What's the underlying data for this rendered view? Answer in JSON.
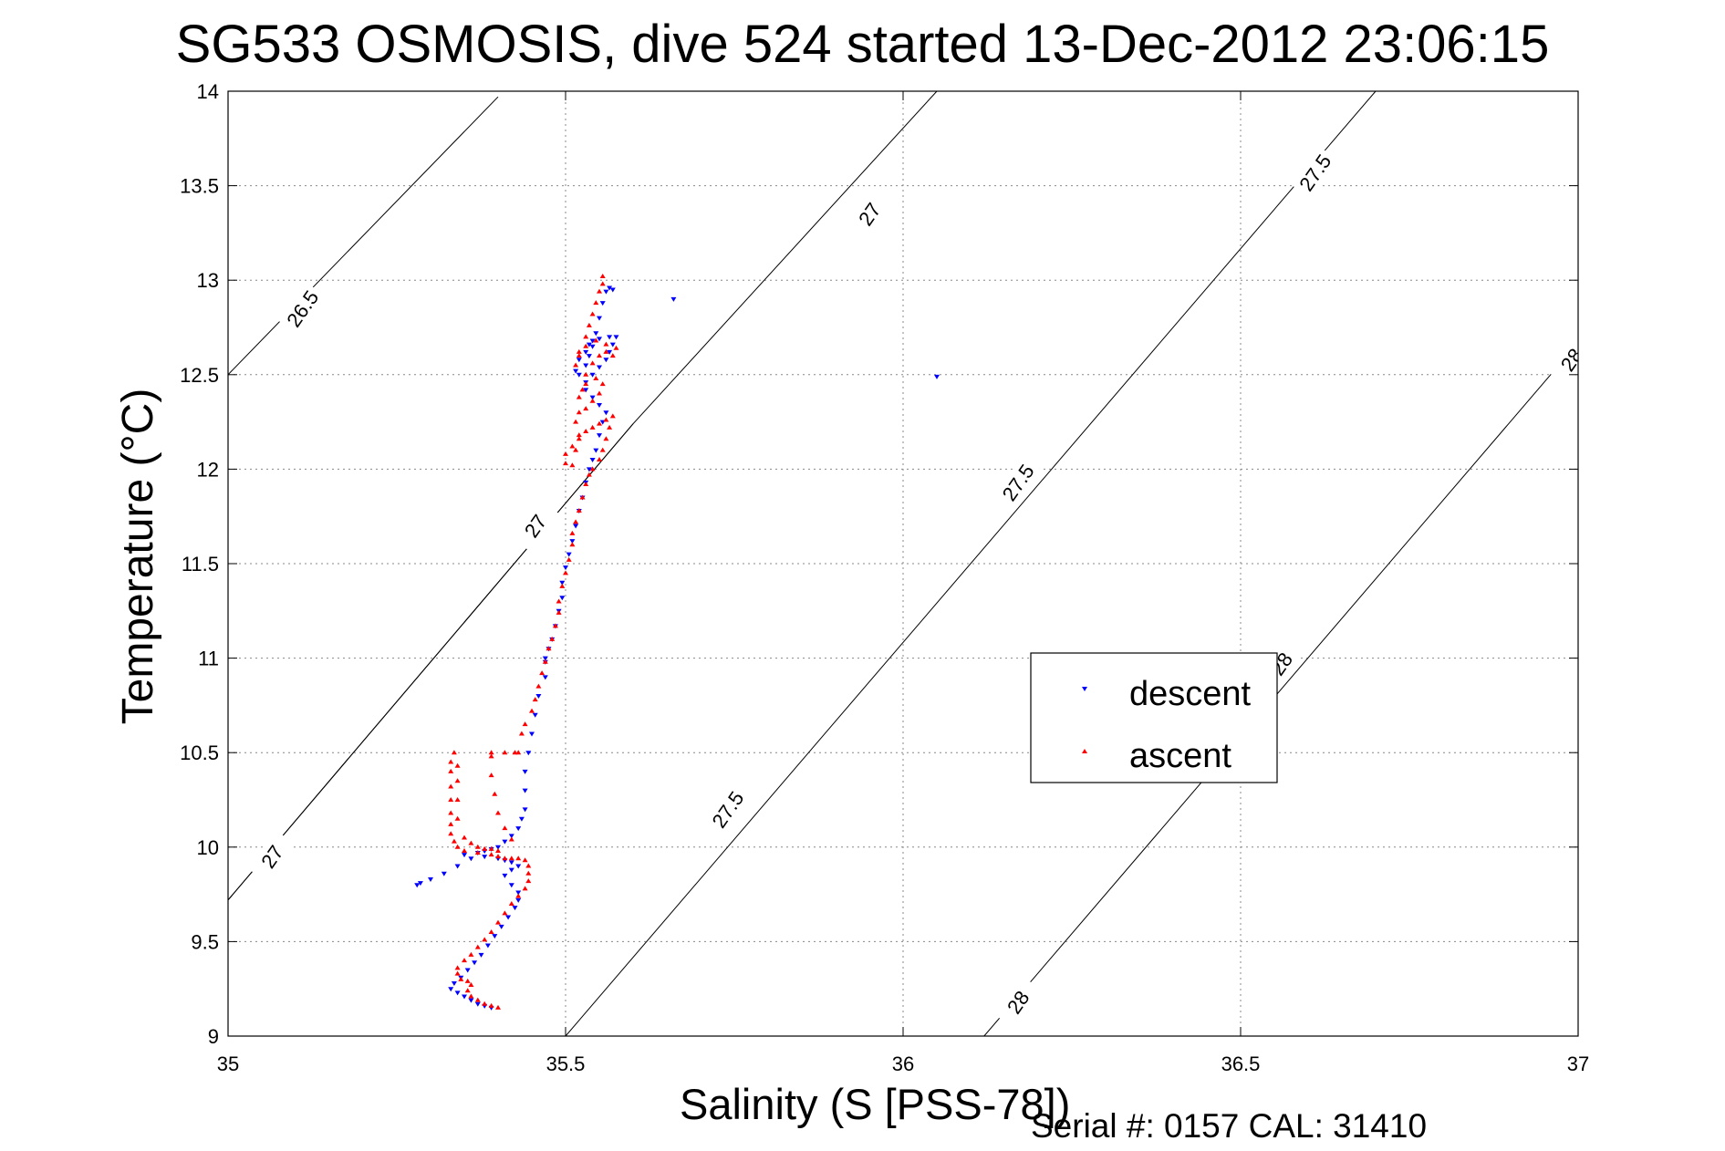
{
  "chart_data": {
    "type": "scatter",
    "title": "SG533 OSMOSIS, dive 524 started 13-Dec-2012 23:06:15",
    "xlabel": "Salinity (S [PSS-78])",
    "ylabel": "Temperature (°C)",
    "xlim": [
      35,
      37
    ],
    "ylim": [
      9,
      14
    ],
    "xticks": [
      "35",
      "35.5",
      "36",
      "36.5",
      "37"
    ],
    "yticks": [
      "9",
      "9.5",
      "10",
      "10.5",
      "11",
      "11.5",
      "12",
      "12.5",
      "13",
      "13.5",
      "14"
    ],
    "grid": true,
    "legend_position": "lower-right",
    "footer": "Serial #: 0157  CAL: 31410",
    "contours": [
      {
        "level": "26.5",
        "points": [
          [
            35,
            12.5
          ],
          [
            35.4,
            13.97
          ]
        ],
        "label": {
          "x": 35.11,
          "y": 12.85,
          "text": "26.5"
        }
      },
      {
        "level": "27",
        "points": [
          [
            35,
            9.72
          ],
          [
            35.6,
            12.24
          ],
          [
            36.05,
            14
          ]
        ],
        "label": {
          "x": 35.95,
          "y": 13.35,
          "text": "27"
        }
      },
      {
        "level": "27",
        "points": [
          [
            35,
            9.72
          ],
          [
            35.6,
            12.24
          ]
        ],
        "label": {
          "x": 35.065,
          "y": 9.95,
          "text": "27"
        }
      },
      {
        "level": "27",
        "points": [
          [
            35,
            9.72
          ],
          [
            35.6,
            12.24
          ]
        ],
        "label": {
          "x": 35.455,
          "y": 11.7,
          "text": "27"
        }
      },
      {
        "level": "27.5",
        "points": [
          [
            35.5,
            9
          ],
          [
            36.7,
            14
          ]
        ],
        "label": {
          "x": 36.61,
          "y": 13.57,
          "text": "27.5"
        }
      },
      {
        "level": "27.5",
        "points": [
          [
            35.5,
            9
          ],
          [
            36.7,
            14
          ]
        ],
        "label": {
          "x": 35.74,
          "y": 10.2,
          "text": "27.5"
        }
      },
      {
        "level": "27.5",
        "points": [
          [
            35.5,
            9
          ],
          [
            36.7,
            14
          ]
        ],
        "label": {
          "x": 36.17,
          "y": 11.93,
          "text": "27.5"
        }
      },
      {
        "level": "28",
        "points": [
          [
            36.12,
            9
          ],
          [
            37,
            12.67
          ]
        ],
        "label": {
          "x": 36.17,
          "y": 9.18,
          "text": "28"
        }
      },
      {
        "level": "28",
        "points": [
          [
            36.12,
            9
          ],
          [
            37,
            12.67
          ]
        ],
        "label": {
          "x": 36.99,
          "y": 12.58,
          "text": "28"
        }
      },
      {
        "level": "28",
        "points": [
          [
            36.12,
            9
          ],
          [
            37,
            12.67
          ]
        ],
        "label": {
          "x": 36.56,
          "y": 10.97,
          "text": "28"
        }
      }
    ],
    "series": [
      {
        "name": "descent",
        "color": "#0000ff",
        "marker": "triangle-down",
        "points": [
          [
            35.39,
            9.15
          ],
          [
            35.38,
            9.16
          ],
          [
            35.37,
            9.17
          ],
          [
            35.36,
            9.19
          ],
          [
            35.35,
            9.21
          ],
          [
            35.34,
            9.23
          ],
          [
            35.33,
            9.25
          ],
          [
            35.335,
            9.28
          ],
          [
            35.345,
            9.31
          ],
          [
            35.355,
            9.35
          ],
          [
            35.365,
            9.39
          ],
          [
            35.375,
            9.43
          ],
          [
            35.385,
            9.48
          ],
          [
            35.395,
            9.53
          ],
          [
            35.405,
            9.58
          ],
          [
            35.415,
            9.63
          ],
          [
            35.425,
            9.68
          ],
          [
            35.43,
            9.72
          ],
          [
            35.43,
            9.76
          ],
          [
            35.42,
            9.8
          ],
          [
            35.41,
            9.85
          ],
          [
            35.42,
            9.88
          ],
          [
            35.43,
            9.9
          ],
          [
            35.42,
            9.92
          ],
          [
            35.41,
            9.93
          ],
          [
            35.4,
            9.94
          ],
          [
            35.38,
            9.95
          ],
          [
            35.36,
            9.94
          ],
          [
            35.34,
            9.9
          ],
          [
            35.32,
            9.86
          ],
          [
            35.3,
            9.83
          ],
          [
            35.285,
            9.81
          ],
          [
            35.28,
            9.8
          ],
          [
            35.35,
            9.96
          ],
          [
            35.37,
            9.97
          ],
          [
            35.38,
            9.98
          ],
          [
            35.39,
            9.99
          ],
          [
            35.4,
            10.0
          ],
          [
            35.41,
            10.03
          ],
          [
            35.42,
            10.06
          ],
          [
            35.43,
            10.1
          ],
          [
            35.435,
            10.15
          ],
          [
            35.44,
            10.2
          ],
          [
            35.44,
            10.3
          ],
          [
            35.44,
            10.4
          ],
          [
            35.445,
            10.5
          ],
          [
            35.45,
            10.6
          ],
          [
            35.455,
            10.7
          ],
          [
            35.46,
            10.8
          ],
          [
            35.47,
            10.9
          ],
          [
            35.47,
            10.98
          ],
          [
            35.47,
            11.0
          ],
          [
            35.475,
            11.05
          ],
          [
            35.48,
            11.1
          ],
          [
            35.485,
            11.17
          ],
          [
            35.49,
            11.25
          ],
          [
            35.495,
            11.32
          ],
          [
            35.495,
            11.4
          ],
          [
            35.5,
            11.48
          ],
          [
            35.505,
            11.55
          ],
          [
            35.51,
            11.62
          ],
          [
            35.515,
            11.7
          ],
          [
            35.52,
            11.78
          ],
          [
            35.525,
            11.85
          ],
          [
            35.53,
            11.93
          ],
          [
            35.535,
            12.0
          ],
          [
            35.54,
            12.05
          ],
          [
            35.545,
            12.1
          ],
          [
            35.55,
            12.18
          ],
          [
            35.555,
            12.25
          ],
          [
            35.56,
            12.3
          ],
          [
            35.55,
            12.34
          ],
          [
            35.54,
            12.38
          ],
          [
            35.53,
            12.42
          ],
          [
            35.53,
            12.46
          ],
          [
            35.54,
            12.5
          ],
          [
            35.55,
            12.54
          ],
          [
            35.56,
            12.58
          ],
          [
            35.565,
            12.62
          ],
          [
            35.57,
            12.66
          ],
          [
            35.575,
            12.7
          ],
          [
            35.565,
            12.7
          ],
          [
            35.55,
            12.69
          ],
          [
            35.54,
            12.68
          ],
          [
            35.535,
            12.66
          ],
          [
            35.53,
            12.62
          ],
          [
            35.52,
            12.58
          ],
          [
            35.515,
            12.52
          ],
          [
            35.52,
            12.5
          ],
          [
            35.53,
            12.55
          ],
          [
            35.535,
            12.6
          ],
          [
            35.54,
            12.65
          ],
          [
            35.545,
            12.72
          ],
          [
            35.55,
            12.8
          ],
          [
            35.555,
            12.88
          ],
          [
            35.56,
            12.94
          ],
          [
            35.565,
            12.96
          ],
          [
            35.57,
            12.95
          ],
          [
            35.66,
            12.9
          ],
          [
            36.05,
            12.49
          ]
        ]
      },
      {
        "name": "ascent",
        "color": "#ff0000",
        "marker": "triangle-up",
        "points": [
          [
            35.4,
            9.15
          ],
          [
            35.39,
            9.16
          ],
          [
            35.38,
            9.17
          ],
          [
            35.37,
            9.19
          ],
          [
            35.36,
            9.21
          ],
          [
            35.355,
            9.24
          ],
          [
            35.36,
            9.27
          ],
          [
            35.355,
            9.29
          ],
          [
            35.345,
            9.3
          ],
          [
            35.34,
            9.33
          ],
          [
            35.34,
            9.36
          ],
          [
            35.35,
            9.4
          ],
          [
            35.36,
            9.43
          ],
          [
            35.37,
            9.47
          ],
          [
            35.38,
            9.51
          ],
          [
            35.39,
            9.55
          ],
          [
            35.4,
            9.6
          ],
          [
            35.41,
            9.65
          ],
          [
            35.42,
            9.7
          ],
          [
            35.43,
            9.74
          ],
          [
            35.44,
            9.78
          ],
          [
            35.445,
            9.82
          ],
          [
            35.445,
            9.86
          ],
          [
            35.445,
            9.9
          ],
          [
            35.44,
            9.93
          ],
          [
            35.43,
            9.94
          ],
          [
            35.42,
            9.94
          ],
          [
            35.41,
            9.94
          ],
          [
            35.4,
            9.95
          ],
          [
            35.39,
            9.96
          ],
          [
            35.37,
            9.97
          ],
          [
            35.35,
            9.98
          ],
          [
            35.34,
            10.0
          ],
          [
            35.335,
            10.03
          ],
          [
            35.33,
            10.07
          ],
          [
            35.33,
            10.12
          ],
          [
            35.33,
            10.18
          ],
          [
            35.33,
            10.25
          ],
          [
            35.33,
            10.32
          ],
          [
            35.33,
            10.4
          ],
          [
            35.33,
            10.45
          ],
          [
            35.335,
            10.5
          ],
          [
            35.34,
            10.43
          ],
          [
            35.34,
            10.35
          ],
          [
            35.34,
            10.25
          ],
          [
            35.34,
            10.15
          ],
          [
            35.35,
            10.05
          ],
          [
            35.36,
            10.02
          ],
          [
            35.37,
            10.0
          ],
          [
            35.38,
            9.99
          ],
          [
            35.39,
            9.99
          ],
          [
            35.4,
            9.98
          ],
          [
            35.42,
            10.04
          ],
          [
            35.41,
            10.1
          ],
          [
            35.4,
            10.18
          ],
          [
            35.395,
            10.28
          ],
          [
            35.39,
            10.38
          ],
          [
            35.39,
            10.48
          ],
          [
            35.39,
            10.5
          ],
          [
            35.41,
            10.5
          ],
          [
            35.425,
            10.5
          ],
          [
            35.43,
            10.5
          ],
          [
            35.435,
            10.6
          ],
          [
            35.44,
            10.65
          ],
          [
            35.45,
            10.72
          ],
          [
            35.455,
            10.78
          ],
          [
            35.46,
            10.85
          ],
          [
            35.465,
            10.92
          ],
          [
            35.47,
            10.98
          ],
          [
            35.475,
            11.05
          ],
          [
            35.48,
            11.1
          ],
          [
            35.485,
            11.17
          ],
          [
            35.49,
            11.24
          ],
          [
            35.49,
            11.3
          ],
          [
            35.495,
            11.38
          ],
          [
            35.5,
            11.45
          ],
          [
            35.505,
            11.52
          ],
          [
            35.51,
            11.6
          ],
          [
            35.51,
            11.66
          ],
          [
            35.515,
            11.72
          ],
          [
            35.52,
            11.78
          ],
          [
            35.525,
            11.85
          ],
          [
            35.53,
            11.92
          ],
          [
            35.535,
            11.97
          ],
          [
            35.54,
            12.0
          ],
          [
            35.55,
            12.05
          ],
          [
            35.555,
            12.1
          ],
          [
            35.56,
            12.16
          ],
          [
            35.565,
            12.22
          ],
          [
            35.57,
            12.28
          ],
          [
            35.56,
            12.26
          ],
          [
            35.55,
            12.24
          ],
          [
            35.54,
            12.22
          ],
          [
            35.53,
            12.2
          ],
          [
            35.52,
            12.16
          ],
          [
            35.51,
            12.12
          ],
          [
            35.5,
            12.08
          ],
          [
            35.5,
            12.03
          ],
          [
            35.51,
            12.02
          ],
          [
            35.515,
            12.1
          ],
          [
            35.52,
            12.18
          ],
          [
            35.515,
            12.25
          ],
          [
            35.52,
            12.3
          ],
          [
            35.53,
            12.32
          ],
          [
            35.54,
            12.36
          ],
          [
            35.55,
            12.4
          ],
          [
            35.555,
            12.45
          ],
          [
            35.545,
            12.48
          ],
          [
            35.53,
            12.45
          ],
          [
            35.525,
            12.42
          ],
          [
            35.52,
            12.38
          ],
          [
            35.53,
            12.5
          ],
          [
            35.54,
            12.56
          ],
          [
            35.55,
            12.6
          ],
          [
            35.56,
            12.62
          ],
          [
            35.57,
            12.6
          ],
          [
            35.575,
            12.64
          ],
          [
            35.56,
            12.66
          ],
          [
            35.545,
            12.68
          ],
          [
            35.53,
            12.65
          ],
          [
            35.52,
            12.6
          ],
          [
            35.515,
            12.55
          ],
          [
            35.52,
            12.62
          ],
          [
            35.53,
            12.7
          ],
          [
            35.535,
            12.76
          ],
          [
            35.54,
            12.82
          ],
          [
            35.545,
            12.88
          ],
          [
            35.55,
            12.94
          ],
          [
            35.555,
            12.98
          ],
          [
            35.555,
            13.02
          ]
        ]
      }
    ]
  }
}
